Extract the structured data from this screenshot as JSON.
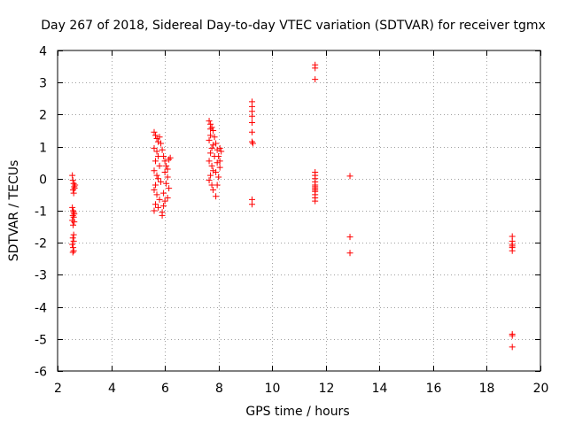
{
  "chart_data": {
    "type": "scatter",
    "title": "Day 267 of 2018, Sidereal Day-to-day VTEC variation (SDTVAR) for receiver tgmx",
    "xlabel": "GPS time / hours",
    "ylabel": "SDTVAR / TECUs",
    "xlim": [
      2,
      20
    ],
    "ylim": [
      -6,
      4
    ],
    "xticks": [
      2,
      4,
      6,
      8,
      10,
      12,
      14,
      16,
      18,
      20
    ],
    "xtick_labels": [
      "2",
      "4",
      "6",
      "8",
      "10",
      "12",
      "14",
      "16",
      "18",
      "20"
    ],
    "yticks": [
      -6,
      -5,
      -4,
      -3,
      -2,
      -1,
      0,
      1,
      2,
      3,
      4
    ],
    "ytick_labels": [
      "-6",
      "-5",
      "-4",
      "-3",
      "-2",
      "-1",
      "0",
      "1",
      "2",
      "3",
      "4"
    ],
    "grid": true,
    "marker": "+",
    "color": "#ff0000",
    "series": [
      {
        "name": "SDTVAR",
        "points": [
          [
            2.55,
            0.1
          ],
          [
            2.57,
            -0.05
          ],
          [
            2.6,
            -0.15
          ],
          [
            2.62,
            -0.25
          ],
          [
            2.58,
            -0.35
          ],
          [
            2.6,
            -0.45
          ],
          [
            2.63,
            -0.3
          ],
          [
            2.65,
            -0.2
          ],
          [
            2.55,
            -0.9
          ],
          [
            2.58,
            -1.0
          ],
          [
            2.6,
            -1.05
          ],
          [
            2.62,
            -1.1
          ],
          [
            2.57,
            -1.15
          ],
          [
            2.6,
            -1.2
          ],
          [
            2.55,
            -1.3
          ],
          [
            2.62,
            -1.35
          ],
          [
            2.58,
            -1.45
          ],
          [
            2.6,
            -1.75
          ],
          [
            2.57,
            -1.85
          ],
          [
            2.6,
            -1.95
          ],
          [
            2.55,
            -2.05
          ],
          [
            2.58,
            -2.15
          ],
          [
            2.6,
            -2.25
          ],
          [
            2.57,
            -2.3
          ],
          [
            5.6,
            1.45
          ],
          [
            5.65,
            1.35
          ],
          [
            5.7,
            1.25
          ],
          [
            5.75,
            1.15
          ],
          [
            5.8,
            1.3
          ],
          [
            5.85,
            1.1
          ],
          [
            5.6,
            0.95
          ],
          [
            5.7,
            0.85
          ],
          [
            5.75,
            0.7
          ],
          [
            5.65,
            0.55
          ],
          [
            5.8,
            0.4
          ],
          [
            5.6,
            0.25
          ],
          [
            5.7,
            0.1
          ],
          [
            5.75,
            0.0
          ],
          [
            5.85,
            -0.1
          ],
          [
            5.65,
            -0.2
          ],
          [
            5.6,
            -0.35
          ],
          [
            5.7,
            -0.5
          ],
          [
            5.8,
            -0.65
          ],
          [
            5.65,
            -0.8
          ],
          [
            5.75,
            -0.9
          ],
          [
            5.6,
            -1.0
          ],
          [
            5.9,
            -1.05
          ],
          [
            5.95,
            -0.85
          ],
          [
            5.9,
            0.9
          ],
          [
            5.95,
            0.7
          ],
          [
            6.0,
            0.55
          ],
          [
            6.05,
            0.4
          ],
          [
            6.0,
            0.2
          ],
          [
            6.1,
            0.05
          ],
          [
            6.05,
            -0.15
          ],
          [
            6.15,
            -0.3
          ],
          [
            5.95,
            -0.45
          ],
          [
            6.1,
            -0.6
          ],
          [
            6.0,
            -0.7
          ],
          [
            6.2,
            0.65
          ],
          [
            6.15,
            0.6
          ],
          [
            6.1,
            0.3
          ],
          [
            5.9,
            -1.15
          ],
          [
            7.65,
            1.8
          ],
          [
            7.7,
            1.7
          ],
          [
            7.75,
            1.6
          ],
          [
            7.8,
            1.5
          ],
          [
            7.7,
            1.35
          ],
          [
            7.65,
            1.2
          ],
          [
            7.8,
            1.05
          ],
          [
            7.75,
            0.95
          ],
          [
            7.7,
            0.8
          ],
          [
            7.85,
            0.7
          ],
          [
            7.65,
            0.55
          ],
          [
            7.75,
            0.4
          ],
          [
            7.8,
            0.25
          ],
          [
            7.7,
            0.1
          ],
          [
            7.65,
            -0.05
          ],
          [
            7.75,
            -0.2
          ],
          [
            7.8,
            -0.35
          ],
          [
            7.9,
            -0.55
          ],
          [
            7.85,
            1.3
          ],
          [
            7.9,
            1.1
          ],
          [
            7.95,
            0.9
          ],
          [
            8.0,
            0.7
          ],
          [
            7.95,
            0.5
          ],
          [
            8.05,
            0.35
          ],
          [
            7.9,
            0.2
          ],
          [
            8.0,
            0.05
          ],
          [
            8.05,
            0.55
          ],
          [
            8.1,
            0.85
          ],
          [
            7.95,
            -0.2
          ],
          [
            8.05,
            0.95
          ],
          [
            7.7,
            1.55
          ],
          [
            9.25,
            2.4
          ],
          [
            9.25,
            2.25
          ],
          [
            9.25,
            2.1
          ],
          [
            9.25,
            1.95
          ],
          [
            9.25,
            1.75
          ],
          [
            9.25,
            1.45
          ],
          [
            9.25,
            1.15
          ],
          [
            9.28,
            1.1
          ],
          [
            9.25,
            -0.65
          ],
          [
            9.25,
            -0.8
          ],
          [
            11.6,
            3.55
          ],
          [
            11.6,
            3.45
          ],
          [
            11.6,
            3.1
          ],
          [
            11.6,
            0.2
          ],
          [
            11.6,
            0.1
          ],
          [
            11.6,
            0.0
          ],
          [
            11.6,
            -0.1
          ],
          [
            11.6,
            -0.2
          ],
          [
            11.6,
            -0.25
          ],
          [
            11.6,
            -0.3
          ],
          [
            11.6,
            -0.35
          ],
          [
            11.6,
            -0.4
          ],
          [
            11.6,
            -0.5
          ],
          [
            11.6,
            -0.6
          ],
          [
            11.6,
            -0.7
          ],
          [
            12.9,
            0.08
          ],
          [
            12.9,
            -1.82
          ],
          [
            12.9,
            -2.32
          ],
          [
            18.95,
            -1.8
          ],
          [
            18.95,
            -1.95
          ],
          [
            18.95,
            -2.05
          ],
          [
            18.95,
            -2.1
          ],
          [
            18.95,
            -2.15
          ],
          [
            18.95,
            -2.25
          ],
          [
            18.95,
            -4.85
          ],
          [
            18.95,
            -4.9
          ],
          [
            18.95,
            -5.25
          ]
        ]
      }
    ]
  }
}
